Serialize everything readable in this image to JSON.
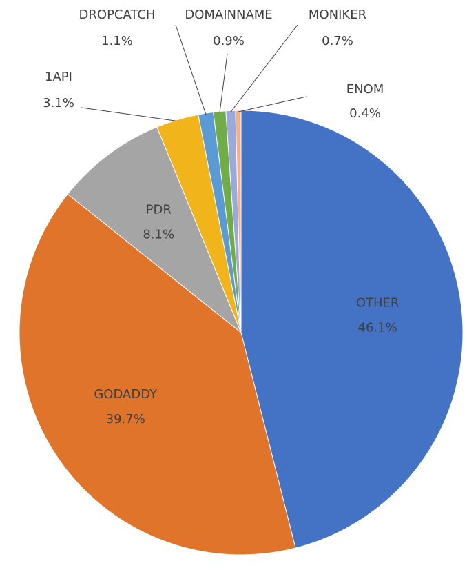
{
  "chart_data": {
    "type": "pie",
    "categories": [
      "OTHER",
      "GODADDY",
      "PDR",
      "1API",
      "DROPCATCH",
      "DOMAINNAME",
      "MONIKER",
      "ENOM"
    ],
    "values": [
      46.1,
      39.7,
      8.1,
      3.1,
      1.1,
      0.9,
      0.7,
      0.4
    ],
    "value_labels": [
      "46.1%",
      "39.7%",
      "8.1%",
      "3.1%",
      "1.1%",
      "0.9%",
      "0.7%",
      "0.4%"
    ],
    "colors": [
      "#4472c4",
      "#e0742a",
      "#a5a5a5",
      "#f2b41b",
      "#5b9bd5",
      "#70ad47",
      "#9aa8de",
      "#f4b183"
    ]
  }
}
